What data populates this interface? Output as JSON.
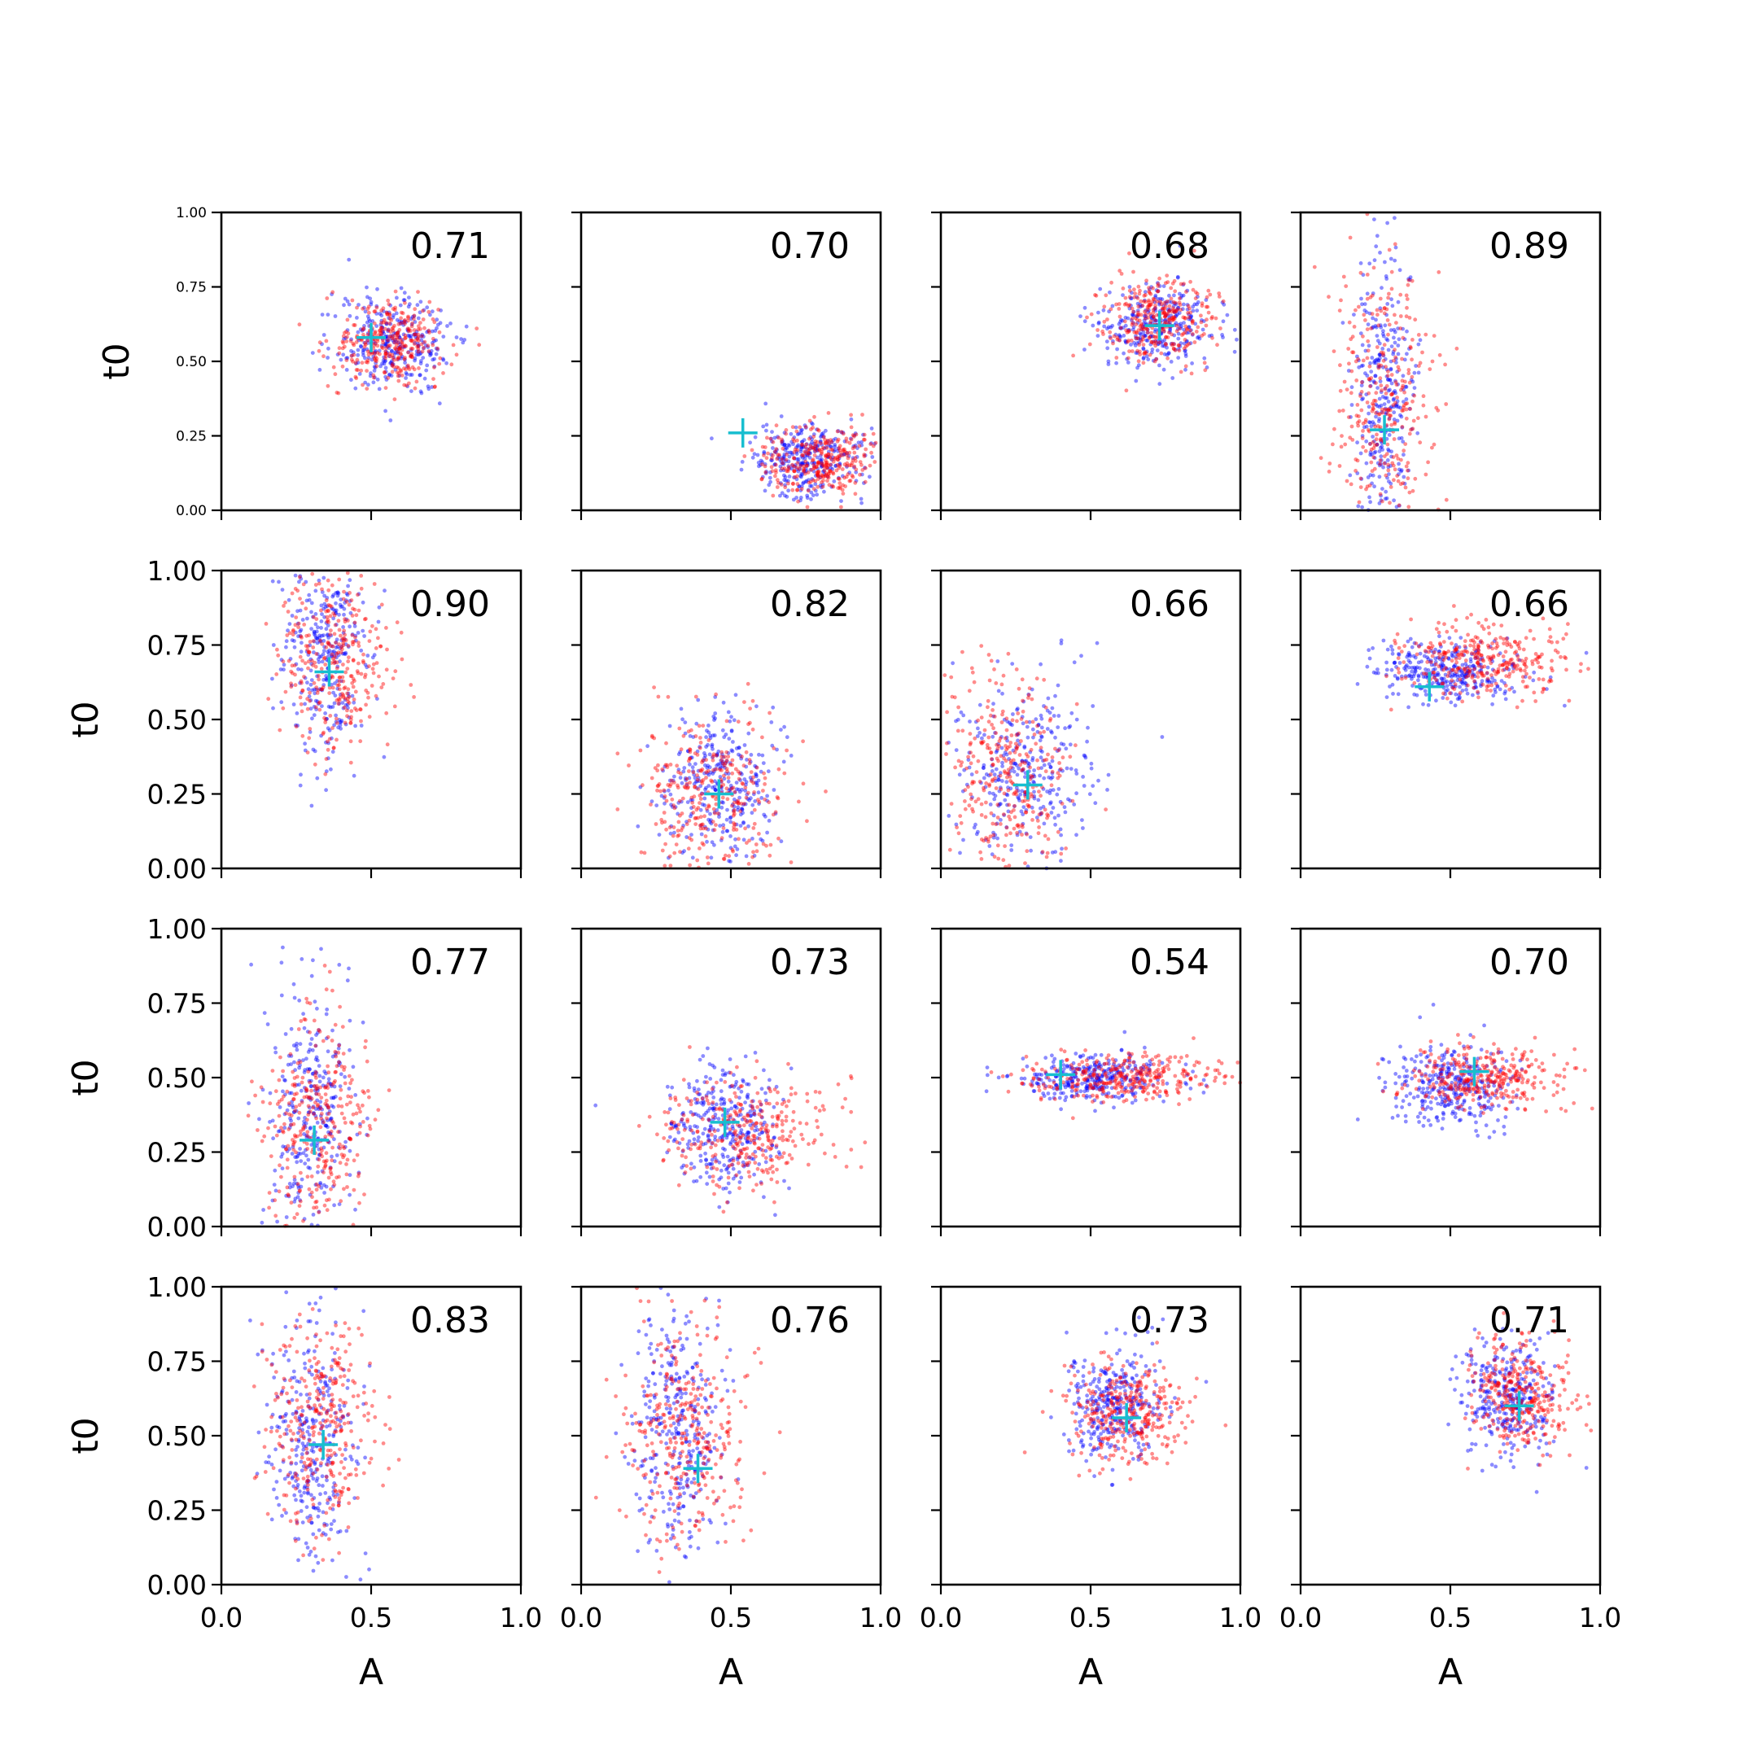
{
  "figure": {
    "xlabel": "A",
    "ylabel": "t0"
  },
  "colors": {
    "series_a": "#0000ff",
    "series_b": "#ff0000",
    "truth_marker": "#17becf"
  },
  "chart_data": {
    "type": "scatter",
    "layout": "4x4 grid",
    "xlabel": "A",
    "ylabel": "t0",
    "xlim": [
      0,
      1
    ],
    "ylim": [
      0,
      1
    ],
    "xticks": [
      "0.0",
      "0.5",
      "1.0"
    ],
    "yticks": [
      "0.00",
      "0.25",
      "0.50",
      "0.75",
      "1.00"
    ],
    "series": [
      {
        "name": "blue samples",
        "color": "#0000ff"
      },
      {
        "name": "red samples",
        "color": "#ff0000"
      }
    ],
    "panels": [
      {
        "label": "0.71",
        "marker": [
          0.5,
          0.58
        ],
        "blue": {
          "cx": 0.58,
          "cy": 0.56,
          "sx": 0.1,
          "sy": 0.08
        },
        "red": {
          "cx": 0.56,
          "cy": 0.56,
          "sx": 0.09,
          "sy": 0.07
        }
      },
      {
        "label": "0.70",
        "marker": [
          0.54,
          0.26
        ],
        "blue": {
          "cx": 0.75,
          "cy": 0.17,
          "sx": 0.1,
          "sy": 0.06
        },
        "red": {
          "cx": 0.8,
          "cy": 0.17,
          "sx": 0.1,
          "sy": 0.06
        }
      },
      {
        "label": "0.68",
        "marker": [
          0.73,
          0.62
        ],
        "blue": {
          "cx": 0.72,
          "cy": 0.62,
          "sx": 0.09,
          "sy": 0.07
        },
        "red": {
          "cx": 0.72,
          "cy": 0.64,
          "sx": 0.09,
          "sy": 0.07
        }
      },
      {
        "label": "0.89",
        "marker": [
          0.28,
          0.27
        ],
        "blue": {
          "cx": 0.28,
          "cy": 0.4,
          "sx": 0.05,
          "sy": 0.25
        },
        "red": {
          "cx": 0.28,
          "cy": 0.38,
          "sx": 0.08,
          "sy": 0.22
        }
      },
      {
        "label": "0.90",
        "marker": [
          0.36,
          0.66
        ],
        "blue": {
          "cx": 0.35,
          "cy": 0.7,
          "sx": 0.07,
          "sy": 0.18
        },
        "red": {
          "cx": 0.38,
          "cy": 0.7,
          "sx": 0.09,
          "sy": 0.15
        }
      },
      {
        "label": "0.82",
        "marker": [
          0.46,
          0.25
        ],
        "blue": {
          "cx": 0.46,
          "cy": 0.28,
          "sx": 0.09,
          "sy": 0.12
        },
        "red": {
          "cx": 0.44,
          "cy": 0.25,
          "sx": 0.12,
          "sy": 0.13
        }
      },
      {
        "label": "0.66",
        "marker": [
          0.29,
          0.28
        ],
        "blue": {
          "cx": 0.28,
          "cy": 0.32,
          "sx": 0.12,
          "sy": 0.15
        },
        "red": {
          "cx": 0.22,
          "cy": 0.3,
          "sx": 0.1,
          "sy": 0.18
        }
      },
      {
        "label": "0.66",
        "marker": [
          0.43,
          0.61
        ],
        "blue": {
          "cx": 0.5,
          "cy": 0.66,
          "sx": 0.12,
          "sy": 0.05
        },
        "red": {
          "cx": 0.62,
          "cy": 0.7,
          "sx": 0.14,
          "sy": 0.06
        }
      },
      {
        "label": "0.77",
        "marker": [
          0.31,
          0.29
        ],
        "blue": {
          "cx": 0.29,
          "cy": 0.38,
          "sx": 0.07,
          "sy": 0.2
        },
        "red": {
          "cx": 0.32,
          "cy": 0.35,
          "sx": 0.09,
          "sy": 0.18
        }
      },
      {
        "label": "0.73",
        "marker": [
          0.48,
          0.35
        ],
        "blue": {
          "cx": 0.48,
          "cy": 0.33,
          "sx": 0.09,
          "sy": 0.1
        },
        "red": {
          "cx": 0.55,
          "cy": 0.32,
          "sx": 0.14,
          "sy": 0.09
        }
      },
      {
        "label": "0.54",
        "marker": [
          0.4,
          0.51
        ],
        "blue": {
          "cx": 0.5,
          "cy": 0.5,
          "sx": 0.13,
          "sy": 0.04
        },
        "red": {
          "cx": 0.62,
          "cy": 0.5,
          "sx": 0.16,
          "sy": 0.04
        }
      },
      {
        "label": "0.70",
        "marker": [
          0.58,
          0.52
        ],
        "blue": {
          "cx": 0.5,
          "cy": 0.48,
          "sx": 0.1,
          "sy": 0.07
        },
        "red": {
          "cx": 0.62,
          "cy": 0.5,
          "sx": 0.13,
          "sy": 0.05
        }
      },
      {
        "label": "0.83",
        "marker": [
          0.34,
          0.47
        ],
        "blue": {
          "cx": 0.3,
          "cy": 0.45,
          "sx": 0.07,
          "sy": 0.22
        },
        "red": {
          "cx": 0.34,
          "cy": 0.52,
          "sx": 0.09,
          "sy": 0.18
        }
      },
      {
        "label": "0.76",
        "marker": [
          0.39,
          0.39
        ],
        "blue": {
          "cx": 0.32,
          "cy": 0.52,
          "sx": 0.07,
          "sy": 0.2
        },
        "red": {
          "cx": 0.35,
          "cy": 0.5,
          "sx": 0.1,
          "sy": 0.18
        }
      },
      {
        "label": "0.73",
        "marker": [
          0.62,
          0.56
        ],
        "blue": {
          "cx": 0.58,
          "cy": 0.6,
          "sx": 0.08,
          "sy": 0.1
        },
        "red": {
          "cx": 0.62,
          "cy": 0.58,
          "sx": 0.1,
          "sy": 0.08
        }
      },
      {
        "label": "0.71",
        "marker": [
          0.73,
          0.6
        ],
        "blue": {
          "cx": 0.7,
          "cy": 0.62,
          "sx": 0.08,
          "sy": 0.1
        },
        "red": {
          "cx": 0.74,
          "cy": 0.64,
          "sx": 0.08,
          "sy": 0.09
        }
      }
    ]
  }
}
